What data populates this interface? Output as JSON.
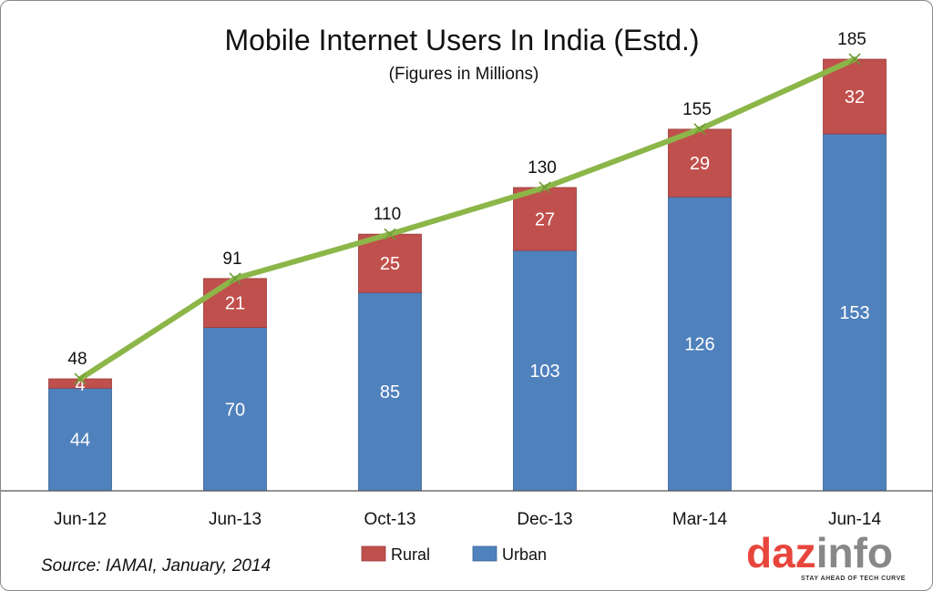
{
  "chart_data": {
    "type": "bar",
    "stacked": true,
    "title": "Mobile Internet Users In India (Estd.)",
    "subtitle": "(Figures in Millions)",
    "categories": [
      "Jun-12",
      "Jun-13",
      "Oct-13",
      "Dec-13",
      "Mar-14",
      "Jun-14"
    ],
    "series": [
      {
        "name": "Urban",
        "color": "#4f81bd",
        "values": [
          44,
          70,
          85,
          103,
          126,
          153
        ]
      },
      {
        "name": "Rural",
        "color": "#c0504d",
        "values": [
          4,
          21,
          25,
          27,
          29,
          32
        ]
      }
    ],
    "totals": {
      "color": "#8db649",
      "values": [
        48,
        91,
        110,
        130,
        155,
        185
      ],
      "labels": [
        "48",
        "91",
        "110",
        "130",
        "155",
        "185"
      ]
    },
    "ylim": [
      0,
      185
    ],
    "grid": false,
    "legend": "bottom-center",
    "legend_items": [
      "Rural",
      "Urban"
    ]
  },
  "source": "Source: IAMAI, January, 2014",
  "logo": {
    "text_a": "daz",
    "text_b": "info",
    "tagline": "STAY AHEAD OF TECH CURVE",
    "color_a": "#e8463c",
    "color_b": "#888888"
  }
}
